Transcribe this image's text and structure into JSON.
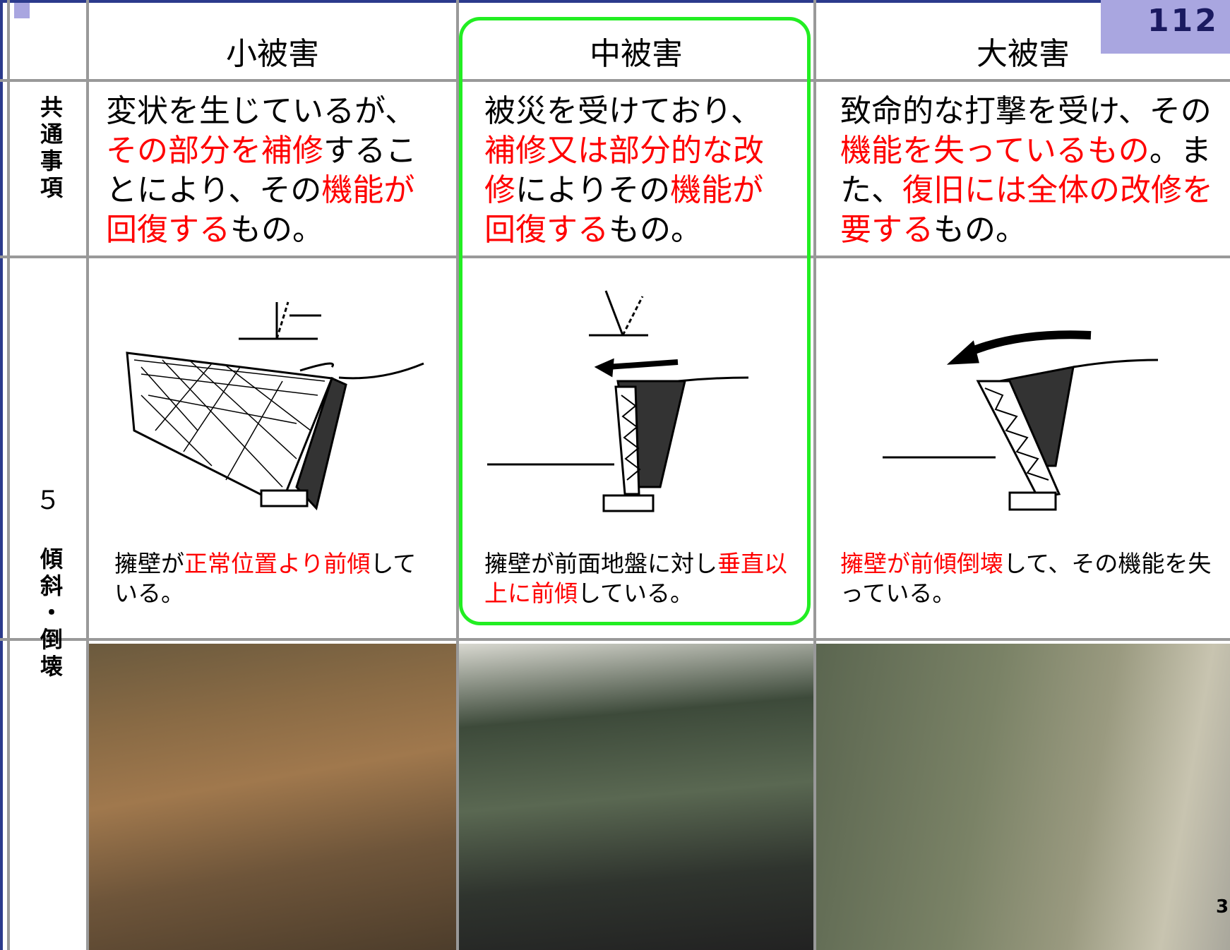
{
  "slide_number": "112",
  "photo_number": "3",
  "row_labels": {
    "common": "共通事項",
    "item_number": "５",
    "item_name": "傾斜・倒壊"
  },
  "columns": [
    {
      "header": "小被害",
      "highlighted": false,
      "description": [
        {
          "text": "変状を生じているが、",
          "highlight": false
        },
        {
          "text": "その部分を補修",
          "highlight": true
        },
        {
          "text": "することにより、その",
          "highlight": false
        },
        {
          "text": "機能が回復する",
          "highlight": true
        },
        {
          "text": "もの。",
          "highlight": false
        }
      ],
      "caption": [
        {
          "text": "擁壁が",
          "highlight": false
        },
        {
          "text": "正常位置より前傾",
          "highlight": true
        },
        {
          "text": "している。",
          "highlight": false
        }
      ]
    },
    {
      "header": "中被害",
      "highlighted": true,
      "description": [
        {
          "text": "被災を受けており、",
          "highlight": false
        },
        {
          "text": "補修又は部分的な改修",
          "highlight": true
        },
        {
          "text": "によりその",
          "highlight": false
        },
        {
          "text": "機能が回復する",
          "highlight": true
        },
        {
          "text": "もの。",
          "highlight": false
        }
      ],
      "caption": [
        {
          "text": "擁壁が前面地盤に対し",
          "highlight": false
        },
        {
          "text": "垂直以上に前傾",
          "highlight": true
        },
        {
          "text": "している。",
          "highlight": false
        }
      ]
    },
    {
      "header": "大被害",
      "highlighted": false,
      "description": [
        {
          "text": "致命的な打撃を受け、その",
          "highlight": false
        },
        {
          "text": "機能を失っているもの",
          "highlight": true
        },
        {
          "text": "。また、",
          "highlight": false
        },
        {
          "text": "復旧には全体の改修を要する",
          "highlight": true
        },
        {
          "text": "もの。",
          "highlight": false
        }
      ],
      "caption": [
        {
          "text": "擁壁が前傾倒壊",
          "highlight": true
        },
        {
          "text": "して、その機能を失っている。",
          "highlight": false
        }
      ]
    }
  ]
}
